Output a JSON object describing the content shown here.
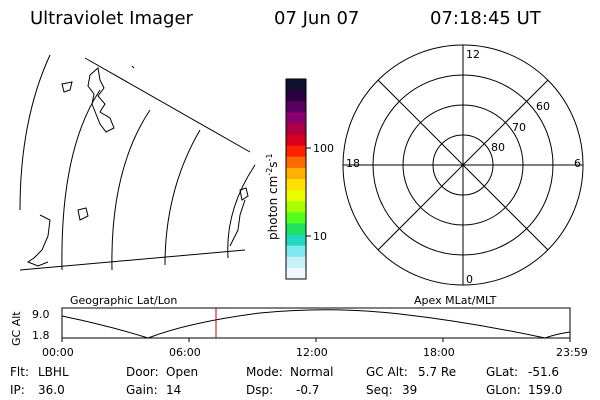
{
  "header": {
    "instrument": "Ultraviolet Imager",
    "date": "07 Jun 07",
    "time": "07:18:45 UT"
  },
  "colorbar": {
    "label": "photon cm",
    "label_sup1": "-2",
    "label_mid": "s",
    "label_sup2": "-1",
    "ticks": [
      "100",
      "10"
    ],
    "colors": [
      "#101030",
      "#2a0040",
      "#5a0060",
      "#8a0070",
      "#b00040",
      "#d80020",
      "#ff2000",
      "#ff6a00",
      "#ffb000",
      "#ffe000",
      "#e8ff00",
      "#a8ff00",
      "#50ff20",
      "#20e060",
      "#20d8c0",
      "#80e8f0",
      "#c8f0f8",
      "#f0f8ff"
    ]
  },
  "left_panel": {
    "label": "Geographic Lat/Lon"
  },
  "polar_panel": {
    "label": "Apex MLat/MLT",
    "mlt_labels": {
      "top": "12",
      "left": "18",
      "right": "6",
      "bottom": "0"
    },
    "lat_labels": [
      "60",
      "70",
      "80"
    ]
  },
  "timeline": {
    "ylabel": "GC Alt",
    "yticks": [
      "9.0",
      "1.8"
    ],
    "xticks": [
      "00:00",
      "06:00",
      "12:00",
      "18:00",
      "23:59"
    ]
  },
  "info": {
    "row1": [
      {
        "key": "Flt:",
        "value": "LBHL"
      },
      {
        "key": "Door:",
        "value": "Open"
      },
      {
        "key": "Mode:",
        "value": "Normal"
      },
      {
        "key": "GC Alt:",
        "value": "5.7 Re"
      },
      {
        "key": "GLat:",
        "value": "-51.6"
      }
    ],
    "row2": [
      {
        "key": "IP:",
        "value": "36.0"
      },
      {
        "key": "Gain:",
        "value": "14"
      },
      {
        "key": "Dsp:",
        "value": "-0.7"
      },
      {
        "key": "Seq:",
        "value": "39"
      },
      {
        "key": "GLon:",
        "value": "159.0"
      }
    ]
  }
}
